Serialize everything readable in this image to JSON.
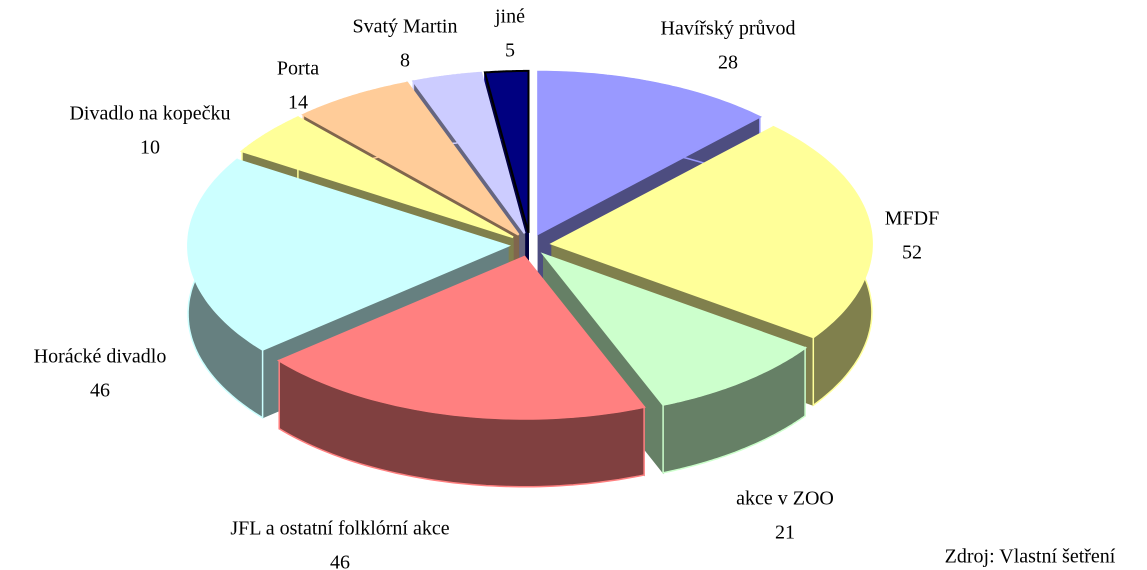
{
  "chart_data": {
    "type": "pie",
    "categories": [
      "Havířský průvod",
      "MFDF",
      "akce v ZOO",
      "JFL a ostatní folklórní akce",
      "Horácké divadlo",
      "Divadlo na kopečku",
      "Porta",
      "Svatý Martin",
      "jiné"
    ],
    "values": [
      28,
      52,
      21,
      46,
      46,
      10,
      14,
      8,
      5
    ],
    "colors": [
      "#9999ff",
      "#ffff99",
      "#ccffcc",
      "#ff8080",
      "#ccffff",
      "#ffff99",
      "#ffcc99",
      "#ccccff",
      "#000080"
    ],
    "source": "Zdroj: Vlastní šetření"
  }
}
